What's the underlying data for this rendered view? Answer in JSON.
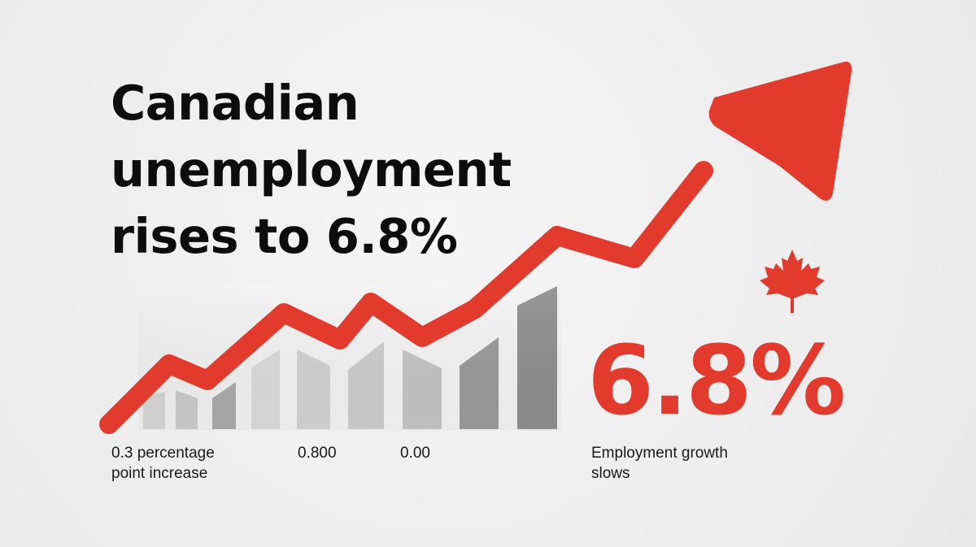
{
  "headline": {
    "line1": "Canadian",
    "line2": "unemployment",
    "line3": "rises to 6.8%"
  },
  "highlight": {
    "value": "6.8%",
    "icon": "maple-leaf-icon"
  },
  "captions": {
    "left_line1": "0.3 percentage",
    "left_line2": "point increase",
    "mid1": "0.800",
    "mid2": "0.00",
    "right_line1": "Employment growth",
    "right_line2": "slows"
  },
  "colors": {
    "accent_red": "#e23b2e",
    "text_dark": "#0d0d0d",
    "background": "#efefef"
  }
}
